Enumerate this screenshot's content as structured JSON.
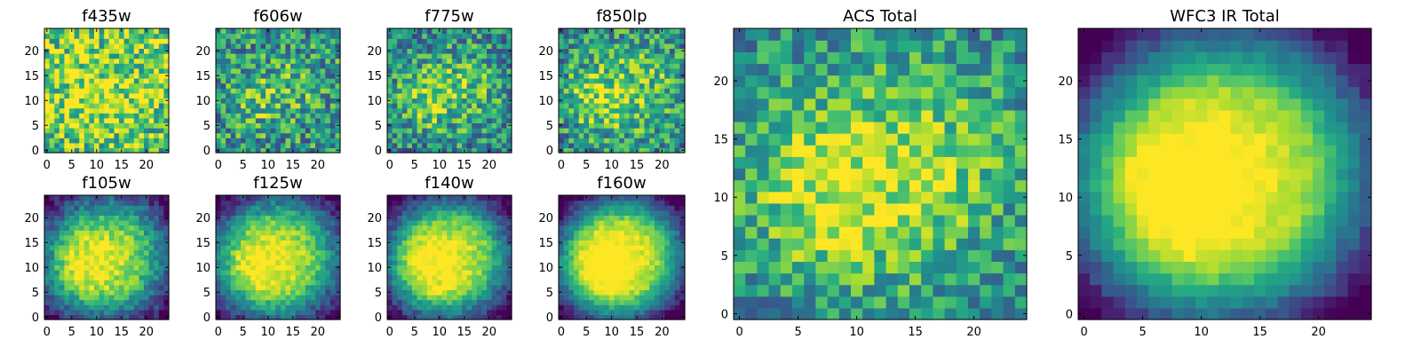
{
  "figure": {
    "colormap": "viridis",
    "colormap_stops": [
      "#440154",
      "#472c7a",
      "#3b518b",
      "#2c718e",
      "#21908d",
      "#27ad81",
      "#5cc863",
      "#aadc32",
      "#fde725"
    ]
  },
  "chart_data": [
    {
      "type": "heatmap",
      "title": "f435w",
      "grid_size": 25,
      "noise": 0.34,
      "brightness": 0.3,
      "peak_strength": 0.3,
      "blob_sigma": 5.5,
      "edge_darkening": 0.0,
      "seed": 11,
      "x_ticks": [
        "0",
        "5",
        "10",
        "15",
        "20"
      ],
      "y_ticks": [
        "0",
        "5",
        "10",
        "15",
        "20"
      ],
      "xlim": [
        0,
        24
      ],
      "ylim": [
        0,
        24
      ]
    },
    {
      "type": "heatmap",
      "title": "f606w",
      "grid_size": 25,
      "noise": 0.32,
      "brightness": 0.1,
      "peak_strength": 0.45,
      "blob_sigma": 3.5,
      "edge_darkening": 0.0,
      "seed": 23,
      "x_ticks": [
        "0",
        "5",
        "10",
        "15",
        "20"
      ],
      "y_ticks": [
        "0",
        "5",
        "10",
        "15",
        "20"
      ],
      "xlim": [
        0,
        24
      ],
      "ylim": [
        0,
        24
      ]
    },
    {
      "type": "heatmap",
      "title": "f775w",
      "grid_size": 25,
      "noise": 0.3,
      "brightness": 0.12,
      "peak_strength": 0.45,
      "blob_sigma": 4.0,
      "edge_darkening": 0.1,
      "seed": 37,
      "x_ticks": [
        "0",
        "5",
        "10",
        "15",
        "20"
      ],
      "y_ticks": [
        "0",
        "5",
        "10",
        "15",
        "20"
      ],
      "xlim": [
        0,
        24
      ],
      "ylim": [
        0,
        24
      ]
    },
    {
      "type": "heatmap",
      "title": "f850lp",
      "grid_size": 25,
      "noise": 0.3,
      "brightness": 0.15,
      "peak_strength": 0.45,
      "blob_sigma": 4.5,
      "edge_darkening": 0.1,
      "seed": 41,
      "x_ticks": [
        "0",
        "5",
        "10",
        "15",
        "20"
      ],
      "y_ticks": [
        "0",
        "5",
        "10",
        "15",
        "20"
      ],
      "xlim": [
        0,
        24
      ],
      "ylim": [
        0,
        24
      ]
    },
    {
      "type": "heatmap",
      "title": "f105w",
      "grid_size": 25,
      "noise": 0.14,
      "brightness": 0.0,
      "peak_strength": 0.8,
      "blob_sigma": 6.5,
      "edge_darkening": 0.4,
      "seed": 53,
      "x_ticks": [
        "0",
        "5",
        "10",
        "15",
        "20"
      ],
      "y_ticks": [
        "0",
        "5",
        "10",
        "15",
        "20"
      ],
      "xlim": [
        0,
        24
      ],
      "ylim": [
        0,
        24
      ]
    },
    {
      "type": "heatmap",
      "title": "f125w",
      "grid_size": 25,
      "noise": 0.12,
      "brightness": 0.0,
      "peak_strength": 0.8,
      "blob_sigma": 7.0,
      "edge_darkening": 0.45,
      "seed": 61,
      "x_ticks": [
        "0",
        "5",
        "10",
        "15",
        "20"
      ],
      "y_ticks": [
        "0",
        "5",
        "10",
        "15",
        "20"
      ],
      "xlim": [
        0,
        24
      ],
      "ylim": [
        0,
        24
      ]
    },
    {
      "type": "heatmap",
      "title": "f140w",
      "grid_size": 25,
      "noise": 0.11,
      "brightness": 0.0,
      "peak_strength": 0.85,
      "blob_sigma": 7.0,
      "edge_darkening": 0.5,
      "seed": 71,
      "x_ticks": [
        "0",
        "5",
        "10",
        "15",
        "20"
      ],
      "y_ticks": [
        "0",
        "5",
        "10",
        "15",
        "20"
      ],
      "xlim": [
        0,
        24
      ],
      "ylim": [
        0,
        24
      ]
    },
    {
      "type": "heatmap",
      "title": "f160w",
      "grid_size": 25,
      "noise": 0.09,
      "brightness": 0.0,
      "peak_strength": 0.9,
      "blob_sigma": 7.5,
      "edge_darkening": 0.55,
      "seed": 83,
      "x_ticks": [
        "0",
        "5",
        "10",
        "15",
        "20"
      ],
      "y_ticks": [
        "0",
        "5",
        "10",
        "15",
        "20"
      ],
      "xlim": [
        0,
        24
      ],
      "ylim": [
        0,
        24
      ]
    },
    {
      "type": "heatmap",
      "title": "ACS Total",
      "grid_size": 25,
      "noise": 0.24,
      "brightness": 0.18,
      "peak_strength": 0.55,
      "blob_sigma": 4.5,
      "edge_darkening": 0.12,
      "seed": 97,
      "x_ticks": [
        "0",
        "5",
        "10",
        "15",
        "20"
      ],
      "y_ticks": [
        "0",
        "5",
        "10",
        "15",
        "20"
      ],
      "xlim": [
        0,
        24
      ],
      "ylim": [
        0,
        24
      ]
    },
    {
      "type": "heatmap",
      "title": "WFC3 IR Total",
      "grid_size": 25,
      "noise": 0.06,
      "brightness": 0.0,
      "peak_strength": 0.9,
      "blob_sigma": 7.5,
      "edge_darkening": 0.55,
      "seed": 101,
      "x_ticks": [
        "0",
        "5",
        "10",
        "15",
        "20"
      ],
      "y_ticks": [
        "0",
        "5",
        "10",
        "15",
        "20"
      ],
      "xlim": [
        0,
        24
      ],
      "ylim": [
        0,
        24
      ]
    }
  ]
}
